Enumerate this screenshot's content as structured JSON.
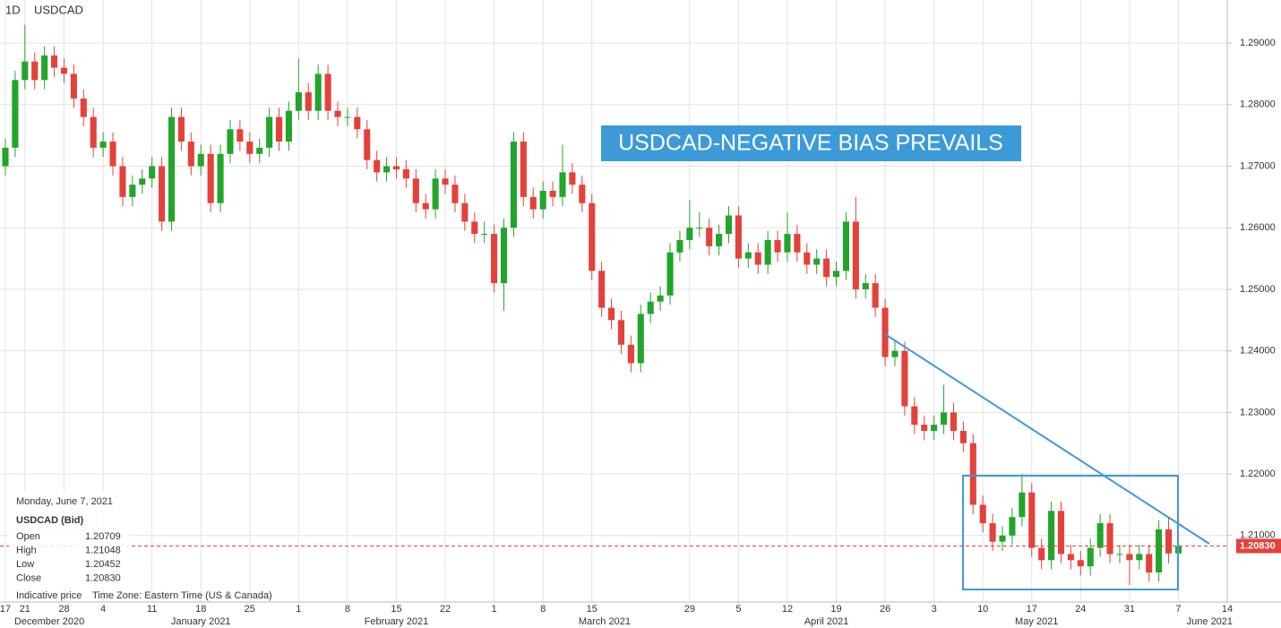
{
  "chart_data": {
    "type": "candlestick",
    "symbol": "USDCAD",
    "interval": "1D",
    "title": "USDCAD-NEGATIVE BIAS PREVAILS",
    "up_color": "#22a52b",
    "down_color": "#e5413b",
    "grid": true,
    "ylim": [
      1.1992,
      1.297
    ],
    "yticks": [
      {
        "value": 1.21,
        "label": "1.21000"
      },
      {
        "value": 1.22,
        "label": "1.22000"
      },
      {
        "value": 1.23,
        "label": "1.23000"
      },
      {
        "value": 1.24,
        "label": "1.24000"
      },
      {
        "value": 1.25,
        "label": "1.25000"
      },
      {
        "value": 1.26,
        "label": "1.26000"
      },
      {
        "value": 1.27,
        "label": "1.27000"
      },
      {
        "value": 1.28,
        "label": "1.28000"
      },
      {
        "value": 1.29,
        "label": "1.29000"
      }
    ],
    "xlim": [
      -0.55,
      125
    ],
    "xticks": [
      {
        "value": 0,
        "label": "17"
      },
      {
        "value": 2,
        "label": "21"
      },
      {
        "value": 6,
        "label": "28"
      },
      {
        "value": 10,
        "label": "4"
      },
      {
        "value": 15,
        "label": "11"
      },
      {
        "value": 20,
        "label": "18"
      },
      {
        "value": 25,
        "label": "25"
      },
      {
        "value": 30,
        "label": "1"
      },
      {
        "value": 35,
        "label": "8"
      },
      {
        "value": 40,
        "label": "15"
      },
      {
        "value": 45,
        "label": "22"
      },
      {
        "value": 50,
        "label": "1"
      },
      {
        "value": 55,
        "label": "8"
      },
      {
        "value": 60,
        "label": "15"
      },
      {
        "value": 70,
        "label": "29"
      },
      {
        "value": 75,
        "label": "5"
      },
      {
        "value": 80,
        "label": "12"
      },
      {
        "value": 85,
        "label": "19"
      },
      {
        "value": 90,
        "label": "26"
      },
      {
        "value": 95,
        "label": "3"
      },
      {
        "value": 100,
        "label": "10"
      },
      {
        "value": 105,
        "label": "17"
      },
      {
        "value": 110,
        "label": "24"
      },
      {
        "value": 115,
        "label": "31"
      },
      {
        "value": 120,
        "label": "7"
      },
      {
        "value": 125,
        "label": "14"
      }
    ],
    "xmonths": [
      {
        "value": 4.5,
        "label": "December 2020"
      },
      {
        "value": 20,
        "label": "January 2021"
      },
      {
        "value": 40,
        "label": "February 2021"
      },
      {
        "value": 61.3,
        "label": "March 2021"
      },
      {
        "value": 84,
        "label": "April 2021"
      },
      {
        "value": 105.5,
        "label": "May 2021"
      },
      {
        "value": 123.2,
        "label": "June 2021"
      }
    ],
    "last_price": {
      "value": 1.2083,
      "label": "1.20830"
    },
    "ohlc": [
      [
        1.27,
        1.2745,
        1.2685,
        1.273
      ],
      [
        1.273,
        1.2855,
        1.2715,
        1.284
      ],
      [
        1.284,
        1.293,
        1.2825,
        1.287
      ],
      [
        1.287,
        1.2885,
        1.2825,
        1.284
      ],
      [
        1.284,
        1.2895,
        1.2825,
        1.288
      ],
      [
        1.288,
        1.2895,
        1.2845,
        1.286
      ],
      [
        1.286,
        1.2875,
        1.2835,
        1.285
      ],
      [
        1.285,
        1.2865,
        1.2795,
        1.281
      ],
      [
        1.281,
        1.2825,
        1.2765,
        1.278
      ],
      [
        1.278,
        1.2795,
        1.2715,
        1.273
      ],
      [
        1.273,
        1.2755,
        1.2715,
        1.274
      ],
      [
        1.274,
        1.2755,
        1.2685,
        1.27
      ],
      [
        1.27,
        1.2715,
        1.2635,
        1.265
      ],
      [
        1.265,
        1.2685,
        1.2635,
        1.267
      ],
      [
        1.267,
        1.2695,
        1.2655,
        1.268
      ],
      [
        1.268,
        1.2715,
        1.2665,
        1.27
      ],
      [
        1.27,
        1.2715,
        1.2595,
        1.261
      ],
      [
        1.261,
        1.2795,
        1.2595,
        1.278
      ],
      [
        1.278,
        1.2795,
        1.2725,
        1.274
      ],
      [
        1.274,
        1.2755,
        1.2685,
        1.27
      ],
      [
        1.27,
        1.2735,
        1.2685,
        1.272
      ],
      [
        1.272,
        1.2735,
        1.2625,
        1.264
      ],
      [
        1.264,
        1.2735,
        1.2625,
        1.272
      ],
      [
        1.272,
        1.2775,
        1.2705,
        1.276
      ],
      [
        1.276,
        1.2775,
        1.2725,
        1.274
      ],
      [
        1.274,
        1.2755,
        1.2705,
        1.272
      ],
      [
        1.272,
        1.2745,
        1.2705,
        1.273
      ],
      [
        1.273,
        1.2795,
        1.2715,
        1.278
      ],
      [
        1.278,
        1.2795,
        1.2725,
        1.274
      ],
      [
        1.274,
        1.2805,
        1.2725,
        1.279
      ],
      [
        1.279,
        1.2875,
        1.2775,
        1.282
      ],
      [
        1.282,
        1.2835,
        1.2775,
        1.279
      ],
      [
        1.279,
        1.2865,
        1.2775,
        1.285
      ],
      [
        1.285,
        1.2865,
        1.2775,
        1.279
      ],
      [
        1.279,
        1.2805,
        1.2765,
        1.278
      ],
      [
        1.278,
        1.2795,
        1.2765,
        1.278
      ],
      [
        1.278,
        1.2795,
        1.2745,
        1.276
      ],
      [
        1.276,
        1.2775,
        1.2695,
        1.271
      ],
      [
        1.271,
        1.2725,
        1.2675,
        1.269
      ],
      [
        1.269,
        1.2715,
        1.2675,
        1.27
      ],
      [
        1.27,
        1.2715,
        1.268,
        1.2695
      ],
      [
        1.2695,
        1.271,
        1.2665,
        1.268
      ],
      [
        1.268,
        1.2695,
        1.2625,
        1.264
      ],
      [
        1.264,
        1.2655,
        1.2615,
        1.263
      ],
      [
        1.263,
        1.2695,
        1.2615,
        1.268
      ],
      [
        1.268,
        1.2695,
        1.2655,
        1.267
      ],
      [
        1.267,
        1.2685,
        1.2625,
        1.264
      ],
      [
        1.264,
        1.2655,
        1.2595,
        1.261
      ],
      [
        1.261,
        1.2625,
        1.2575,
        1.259
      ],
      [
        1.259,
        1.261,
        1.2575,
        1.259
      ],
      [
        1.259,
        1.2605,
        1.2495,
        1.251
      ],
      [
        1.251,
        1.2615,
        1.2465,
        1.26
      ],
      [
        1.26,
        1.2755,
        1.2585,
        1.274
      ],
      [
        1.274,
        1.2755,
        1.2635,
        1.265
      ],
      [
        1.265,
        1.2665,
        1.2615,
        1.263
      ],
      [
        1.263,
        1.2675,
        1.2615,
        1.266
      ],
      [
        1.266,
        1.2675,
        1.2635,
        1.265
      ],
      [
        1.265,
        1.2735,
        1.2635,
        1.269
      ],
      [
        1.269,
        1.2705,
        1.2655,
        1.267
      ],
      [
        1.267,
        1.2685,
        1.2625,
        1.264
      ],
      [
        1.264,
        1.2655,
        1.2515,
        1.253
      ],
      [
        1.253,
        1.2545,
        1.2455,
        1.247
      ],
      [
        1.247,
        1.2485,
        1.2435,
        1.245
      ],
      [
        1.245,
        1.2465,
        1.2395,
        1.241
      ],
      [
        1.241,
        1.2425,
        1.2365,
        1.238
      ],
      [
        1.238,
        1.2475,
        1.2365,
        1.246
      ],
      [
        1.246,
        1.2495,
        1.2445,
        1.248
      ],
      [
        1.248,
        1.2505,
        1.2465,
        1.249
      ],
      [
        1.249,
        1.2575,
        1.2475,
        1.256
      ],
      [
        1.256,
        1.2595,
        1.2545,
        1.258
      ],
      [
        1.258,
        1.2645,
        1.2565,
        1.26
      ],
      [
        1.26,
        1.2625,
        1.2585,
        1.26
      ],
      [
        1.26,
        1.2615,
        1.2555,
        1.257
      ],
      [
        1.257,
        1.2605,
        1.2555,
        1.259
      ],
      [
        1.259,
        1.2635,
        1.2575,
        1.262
      ],
      [
        1.262,
        1.2635,
        1.2535,
        1.255
      ],
      [
        1.255,
        1.2575,
        1.2535,
        1.256
      ],
      [
        1.256,
        1.2575,
        1.2525,
        1.254
      ],
      [
        1.254,
        1.2595,
        1.2525,
        1.258
      ],
      [
        1.258,
        1.2595,
        1.2545,
        1.256
      ],
      [
        1.256,
        1.2625,
        1.2545,
        1.259
      ],
      [
        1.259,
        1.2605,
        1.2545,
        1.256
      ],
      [
        1.256,
        1.2575,
        1.2525,
        1.254
      ],
      [
        1.254,
        1.2565,
        1.2525,
        1.255
      ],
      [
        1.255,
        1.2565,
        1.2505,
        1.252
      ],
      [
        1.252,
        1.2545,
        1.2505,
        1.253
      ],
      [
        1.253,
        1.2625,
        1.2515,
        1.261
      ],
      [
        1.261,
        1.265,
        1.2485,
        1.25
      ],
      [
        1.25,
        1.2525,
        1.2485,
        1.251
      ],
      [
        1.251,
        1.2525,
        1.2455,
        1.247
      ],
      [
        1.247,
        1.2485,
        1.2375,
        1.239
      ],
      [
        1.239,
        1.2415,
        1.2375,
        1.24
      ],
      [
        1.24,
        1.2415,
        1.2295,
        1.231
      ],
      [
        1.231,
        1.2325,
        1.2265,
        1.228
      ],
      [
        1.228,
        1.2295,
        1.2255,
        1.227
      ],
      [
        1.227,
        1.2295,
        1.2255,
        1.228
      ],
      [
        1.228,
        1.2345,
        1.2265,
        1.23
      ],
      [
        1.23,
        1.2315,
        1.2255,
        1.227
      ],
      [
        1.227,
        1.2285,
        1.2235,
        1.225
      ],
      [
        1.225,
        1.2265,
        1.2135,
        1.215
      ],
      [
        1.215,
        1.2165,
        1.2105,
        1.212
      ],
      [
        1.212,
        1.2135,
        1.2075,
        1.209
      ],
      [
        1.209,
        1.2115,
        1.2075,
        1.21
      ],
      [
        1.21,
        1.2145,
        1.2085,
        1.213
      ],
      [
        1.213,
        1.22,
        1.2115,
        1.217
      ],
      [
        1.217,
        1.2185,
        1.2065,
        1.208
      ],
      [
        1.208,
        1.2095,
        1.2045,
        1.206
      ],
      [
        1.206,
        1.2155,
        1.2045,
        1.214
      ],
      [
        1.214,
        1.2155,
        1.2055,
        1.207
      ],
      [
        1.207,
        1.2085,
        1.2045,
        1.206
      ],
      [
        1.206,
        1.2075,
        1.2035,
        1.205
      ],
      [
        1.205,
        1.2095,
        1.2035,
        1.208
      ],
      [
        1.208,
        1.2135,
        1.2065,
        1.212
      ],
      [
        1.212,
        1.2135,
        1.2055,
        1.207
      ],
      [
        1.207,
        1.2085,
        1.2055,
        1.207
      ],
      [
        1.207,
        1.2085,
        1.202,
        1.206
      ],
      [
        1.206,
        1.2085,
        1.2045,
        1.207
      ],
      [
        1.207,
        1.2085,
        1.2025,
        1.204
      ],
      [
        1.204,
        1.2125,
        1.2025,
        1.211
      ],
      [
        1.211,
        1.213,
        1.2055,
        1.2071
      ],
      [
        1.20709,
        1.21048,
        1.20452,
        1.2083
      ]
    ],
    "info": {
      "date": "Monday, June 7, 2021",
      "instrument": "USDCAD (Bid)",
      "rows": [
        [
          "Open",
          "1.20709"
        ],
        [
          "High",
          "1.21048"
        ],
        [
          "Low",
          "1.20452"
        ],
        [
          "Close",
          "1.20830"
        ]
      ],
      "note": "Indicative price",
      "timezone": "Time Zone: Eastern Time (US & Canada)"
    }
  }
}
